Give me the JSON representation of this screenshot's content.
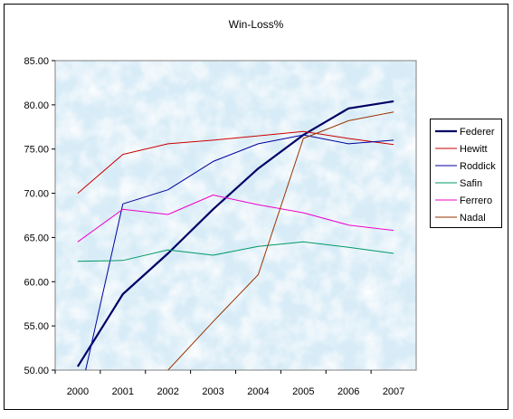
{
  "chart_data": {
    "type": "line",
    "title": "Win-Loss%",
    "xlabel": "",
    "ylabel": "",
    "categories": [
      "2000",
      "2001",
      "2002",
      "2003",
      "2004",
      "2005",
      "2006",
      "2007"
    ],
    "y_tick_labels": [
      "85.00",
      "80.00",
      "75.00",
      "70.00",
      "65.00",
      "60.00",
      "55.00",
      "50.00"
    ],
    "ylim": [
      50,
      85
    ],
    "grid": false,
    "legend_position": "right",
    "plot_background": "#d8ecf7",
    "series": [
      {
        "name": "Federer",
        "color": "#000066",
        "width": 2.2,
        "values": [
          50.4,
          58.6,
          63.2,
          68.2,
          72.8,
          76.6,
          79.6,
          80.4
        ]
      },
      {
        "name": "Hewitt",
        "color": "#cc0000",
        "width": 1,
        "values": [
          70.0,
          74.4,
          75.6,
          76.0,
          76.5,
          77.0,
          76.2,
          75.5
        ]
      },
      {
        "name": "Roddick",
        "color": "#000099",
        "width": 1,
        "values": [
          46.0,
          68.8,
          70.4,
          73.6,
          75.6,
          76.6,
          75.6,
          76.0
        ]
      },
      {
        "name": "Safin",
        "color": "#009966",
        "width": 1,
        "values": [
          62.3,
          62.4,
          63.6,
          63.0,
          64.0,
          64.5,
          63.9,
          63.2
        ]
      },
      {
        "name": "Ferrero",
        "color": "#ee00cc",
        "width": 1,
        "values": [
          64.5,
          68.2,
          67.6,
          69.8,
          68.7,
          67.8,
          66.4,
          65.8
        ]
      },
      {
        "name": "Nadal",
        "color": "#993300",
        "width": 1,
        "values": [
          null,
          null,
          50.0,
          55.5,
          60.8,
          76.2,
          78.2,
          79.2
        ]
      }
    ]
  }
}
